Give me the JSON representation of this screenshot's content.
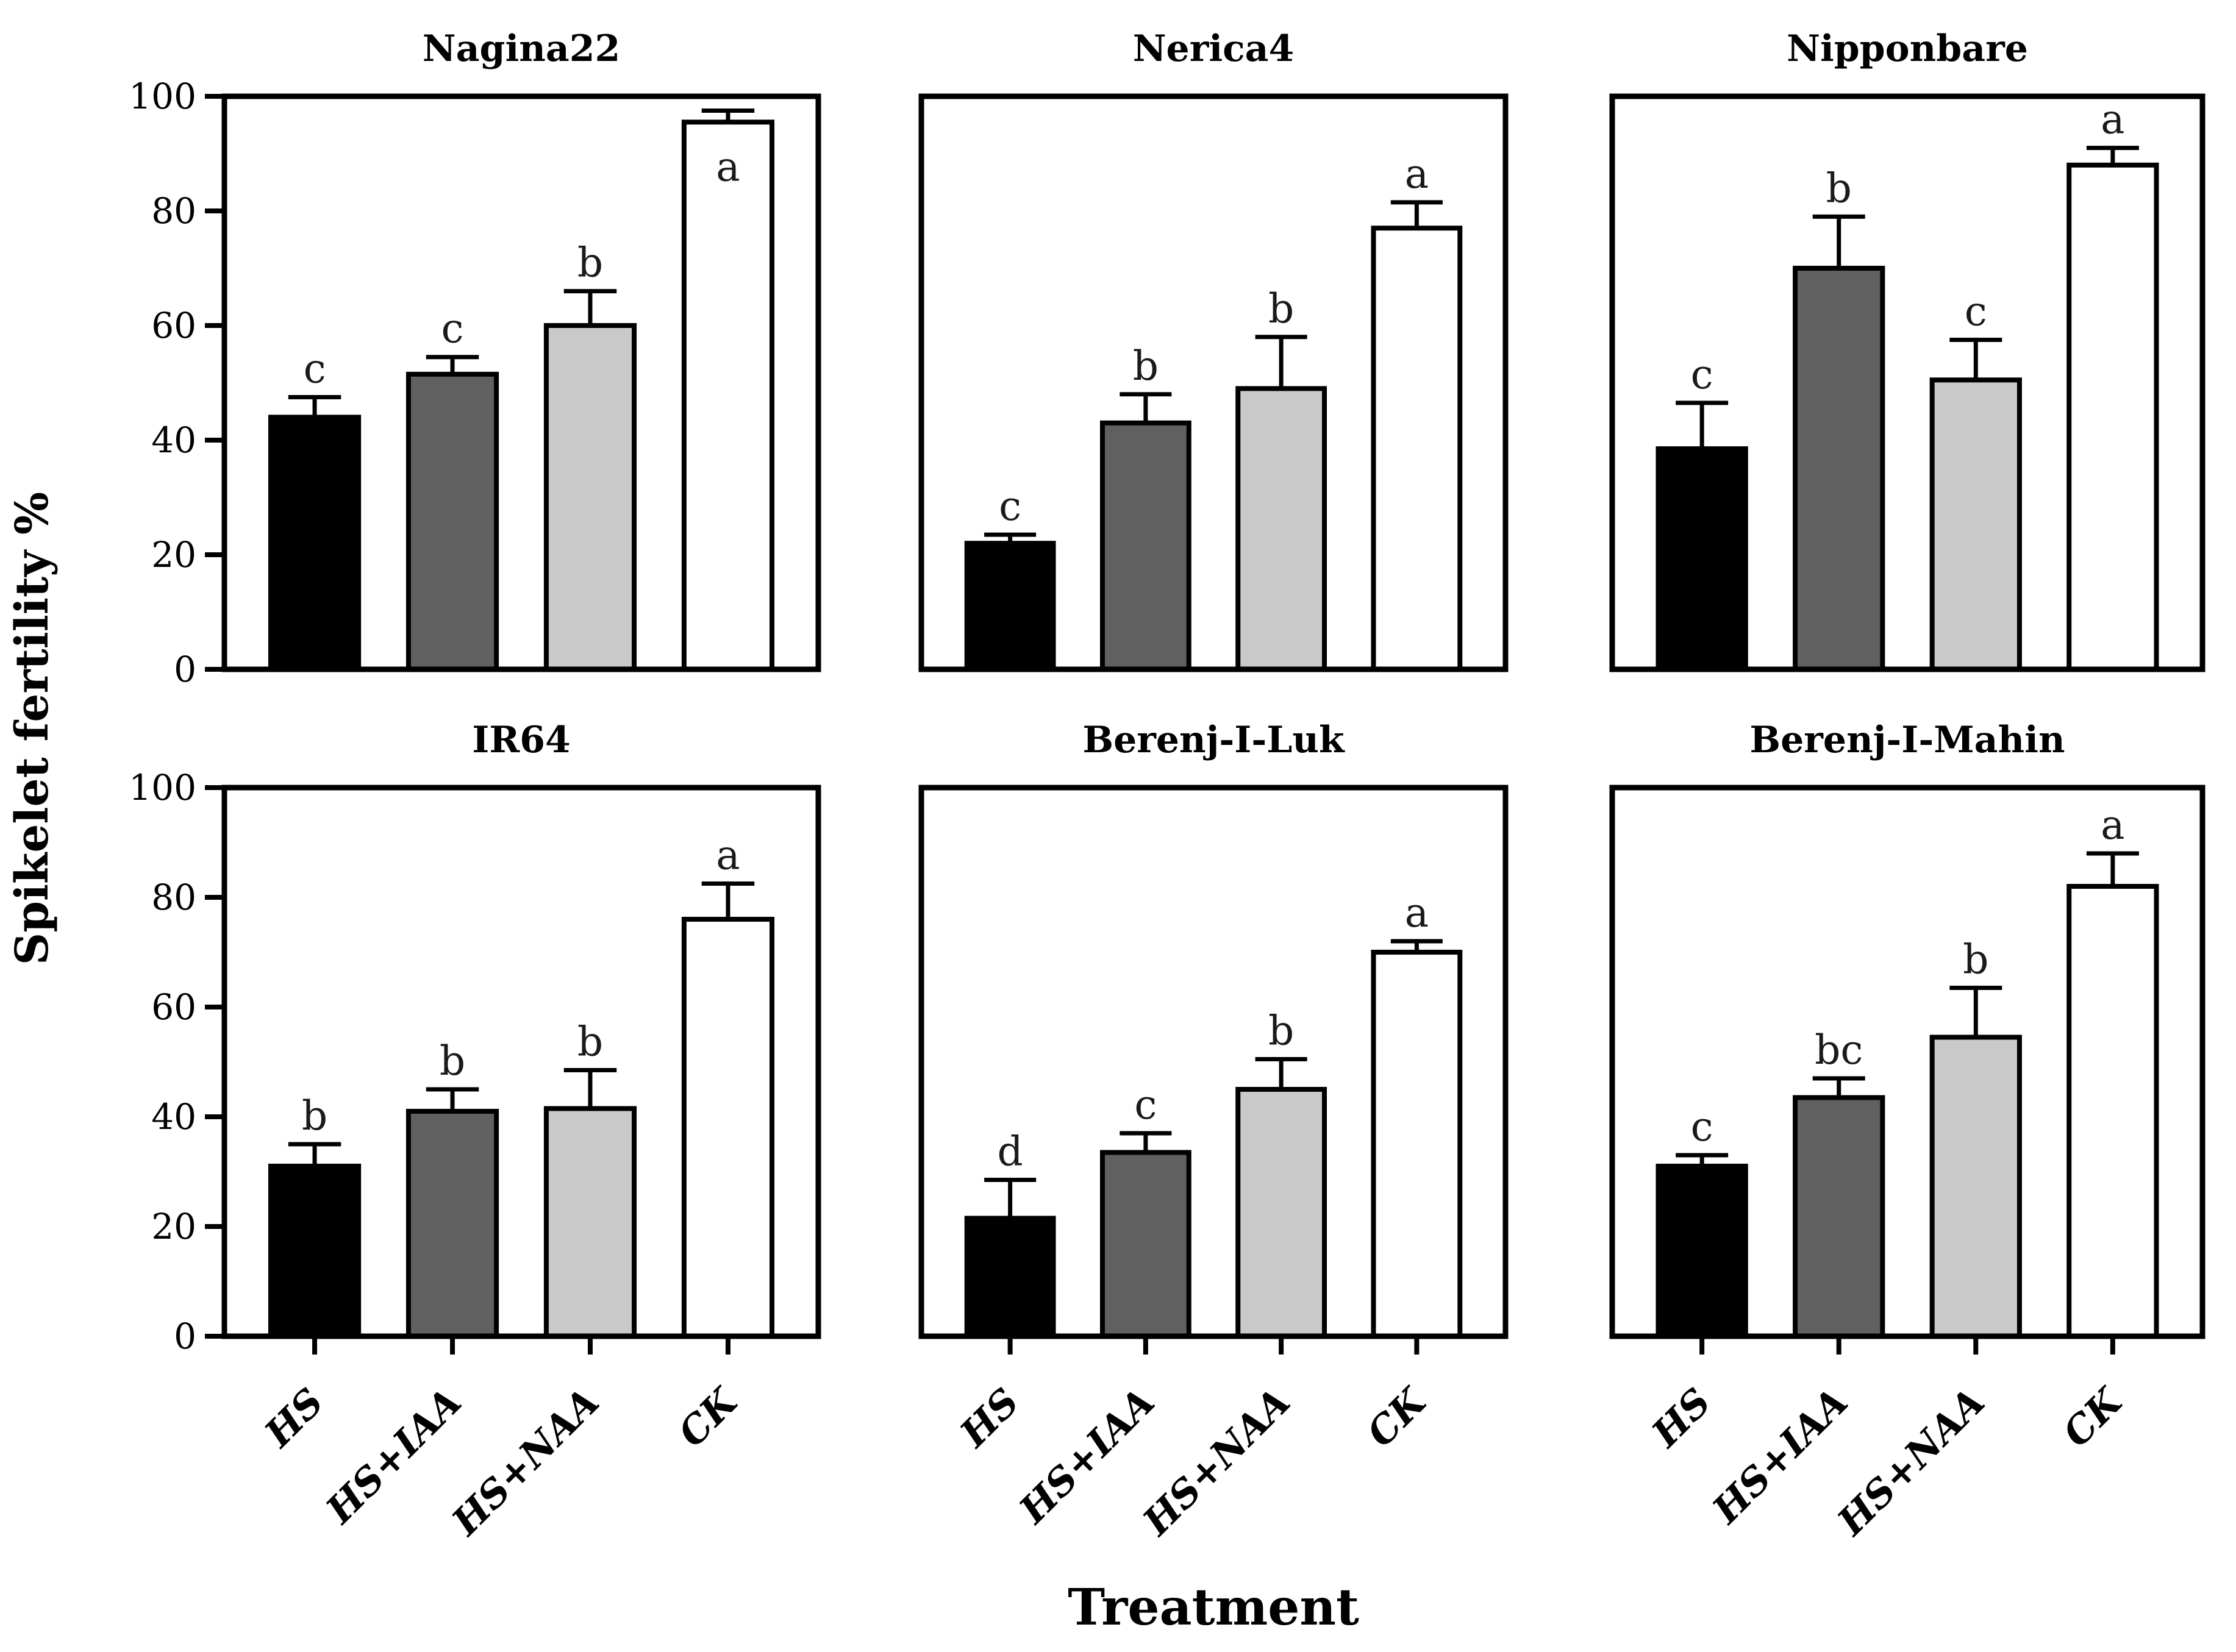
{
  "figure": {
    "y_axis_label": "Spikelet fertility %",
    "x_axis_label": "Treatment",
    "background": "#ffffff",
    "axis_color": "#000000",
    "bar_fill_colors": {
      "black": "#000000",
      "dark_gray": "#606060",
      "light_gray": "#c9c9c9",
      "white": "#ffffff"
    }
  },
  "chart_data": [
    {
      "type": "bar",
      "title": "Nagina22",
      "categories": [
        "HS",
        "HS+IAA",
        "HS+NAA",
        "CK"
      ],
      "values": [
        44,
        51.5,
        60,
        95.5
      ],
      "errors": [
        3.5,
        3,
        6,
        2
      ],
      "sig_letters": [
        "c",
        "c",
        "b",
        "a"
      ],
      "bar_colors": [
        "black",
        "dark_gray",
        "light_gray",
        "white"
      ],
      "ylim": [
        0,
        100
      ],
      "yticks": [
        0,
        20,
        40,
        60,
        80,
        100
      ],
      "grid": "off",
      "show_y_tick_labels": true,
      "show_x_tick_labels": false
    },
    {
      "type": "bar",
      "title": "Nerica4",
      "categories": [
        "HS",
        "HS+IAA",
        "HS+NAA",
        "CK"
      ],
      "values": [
        22,
        43,
        49,
        77
      ],
      "errors": [
        1.5,
        5,
        9,
        4.5
      ],
      "sig_letters": [
        "c",
        "b",
        "b",
        "a"
      ],
      "bar_colors": [
        "black",
        "dark_gray",
        "light_gray",
        "white"
      ],
      "ylim": [
        0,
        100
      ],
      "yticks": [
        0,
        20,
        40,
        60,
        80,
        100
      ],
      "grid": "off",
      "show_y_tick_labels": false,
      "show_x_tick_labels": false
    },
    {
      "type": "bar",
      "title": "Nipponbare",
      "categories": [
        "HS",
        "HS+IAA",
        "HS+NAA",
        "CK"
      ],
      "values": [
        38.5,
        70,
        50.5,
        88
      ],
      "errors": [
        8,
        9,
        7,
        3
      ],
      "sig_letters": [
        "c",
        "b",
        "c",
        "a"
      ],
      "bar_colors": [
        "black",
        "dark_gray",
        "light_gray",
        "white"
      ],
      "ylim": [
        0,
        100
      ],
      "yticks": [
        0,
        20,
        40,
        60,
        80,
        100
      ],
      "grid": "off",
      "show_y_tick_labels": false,
      "show_x_tick_labels": false
    },
    {
      "type": "bar",
      "title": "IR64",
      "categories": [
        "HS",
        "HS+IAA",
        "HS+NAA",
        "CK"
      ],
      "values": [
        31,
        41,
        41.5,
        76
      ],
      "errors": [
        4,
        4,
        7,
        6.5
      ],
      "sig_letters": [
        "b",
        "b",
        "b",
        "a"
      ],
      "bar_colors": [
        "black",
        "dark_gray",
        "light_gray",
        "white"
      ],
      "ylim": [
        0,
        100
      ],
      "yticks": [
        0,
        20,
        40,
        60,
        80,
        100
      ],
      "grid": "off",
      "show_y_tick_labels": true,
      "show_x_tick_labels": true
    },
    {
      "type": "bar",
      "title": "Berenj-I-Luk",
      "categories": [
        "HS",
        "HS+IAA",
        "HS+NAA",
        "CK"
      ],
      "values": [
        21.5,
        33.5,
        45,
        70
      ],
      "errors": [
        7,
        3.5,
        5.5,
        2
      ],
      "sig_letters": [
        "d",
        "c",
        "b",
        "a"
      ],
      "bar_colors": [
        "black",
        "dark_gray",
        "light_gray",
        "white"
      ],
      "ylim": [
        0,
        100
      ],
      "yticks": [
        0,
        20,
        40,
        60,
        80,
        100
      ],
      "grid": "off",
      "show_y_tick_labels": false,
      "show_x_tick_labels": true
    },
    {
      "type": "bar",
      "title": "Berenj-I-Mahin",
      "categories": [
        "HS",
        "HS+IAA",
        "HS+NAA",
        "CK"
      ],
      "values": [
        31,
        43.5,
        54.5,
        82
      ],
      "errors": [
        2,
        3.5,
        9,
        6
      ],
      "sig_letters": [
        "c",
        "bc",
        "b",
        "a"
      ],
      "bar_colors": [
        "black",
        "dark_gray",
        "light_gray",
        "white"
      ],
      "ylim": [
        0,
        100
      ],
      "yticks": [
        0,
        20,
        40,
        60,
        80,
        100
      ],
      "grid": "off",
      "show_y_tick_labels": false,
      "show_x_tick_labels": true
    }
  ]
}
